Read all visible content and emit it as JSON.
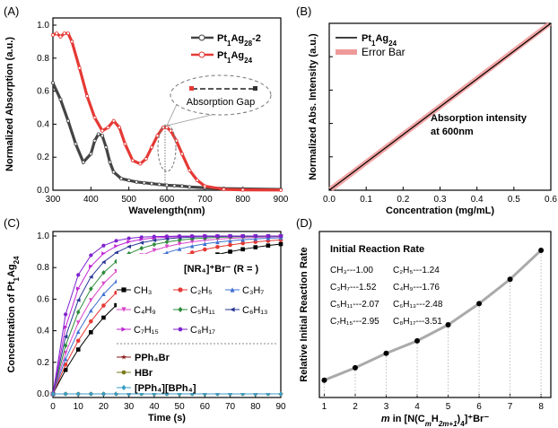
{
  "panels": {
    "A": {
      "label": "(A)"
    },
    "B": {
      "label": "(B)"
    },
    "C": {
      "label": "(C)"
    },
    "D": {
      "label": "(D)"
    }
  },
  "chart_data": [
    {
      "id": "A",
      "type": "line",
      "xlabel": "Wavelength(nm)",
      "ylabel": "Normalized Absorption (a.u.)",
      "xlim": [
        300,
        900
      ],
      "ylim": [
        0,
        1.0
      ],
      "xticks": [
        "300",
        "400",
        "500",
        "600",
        "700",
        "800",
        "900"
      ],
      "yticks": [
        "0.0",
        "0.2",
        "0.4",
        "0.6",
        "0.8",
        "1.0"
      ],
      "legend_position": "top-right",
      "annotation": "Absorption Gap",
      "series": [
        {
          "name_main": "Pt",
          "name_sub": "1",
          "name_main2": "Ag",
          "name_sub2": "28",
          "name_tail": "-2",
          "color": "#444444",
          "x": [
            300,
            320,
            340,
            360,
            380,
            400,
            410,
            420,
            430,
            440,
            450,
            460,
            480,
            500,
            520,
            540,
            560,
            580,
            600,
            620,
            640,
            660,
            700,
            750,
            800,
            900
          ],
          "y": [
            0.65,
            0.55,
            0.42,
            0.28,
            0.17,
            0.22,
            0.3,
            0.34,
            0.33,
            0.26,
            0.17,
            0.11,
            0.07,
            0.06,
            0.05,
            0.045,
            0.04,
            0.035,
            0.03,
            0.028,
            0.025,
            0.02,
            0.015,
            0.01,
            0.008,
            0.005
          ]
        },
        {
          "name_main": "Pt",
          "name_sub": "1",
          "name_main2": "Ag",
          "name_sub2": "24",
          "name_tail": "",
          "color": "#e53935",
          "x": [
            300,
            310,
            320,
            330,
            340,
            350,
            370,
            390,
            410,
            430,
            445,
            460,
            475,
            490,
            510,
            530,
            545,
            560,
            575,
            590,
            600,
            610,
            625,
            640,
            660,
            680,
            700,
            750,
            800,
            900
          ],
          "y": [
            0.94,
            0.95,
            0.93,
            0.95,
            0.95,
            0.9,
            0.74,
            0.57,
            0.44,
            0.36,
            0.38,
            0.42,
            0.38,
            0.28,
            0.18,
            0.16,
            0.19,
            0.26,
            0.33,
            0.38,
            0.38,
            0.36,
            0.3,
            0.22,
            0.12,
            0.06,
            0.025,
            0.005,
            0.002,
            0.001
          ]
        }
      ]
    },
    {
      "id": "B",
      "type": "line",
      "xlabel": "Concentration (mg/mL)",
      "ylabel": "Normalized Abs. Intensity (a.u.)",
      "xlim": [
        0,
        0.6
      ],
      "ylim": [
        0,
        1
      ],
      "xticks": [
        "0.0",
        "0.1",
        "0.2",
        "0.3",
        "0.4",
        "0.5",
        "0.6"
      ],
      "annotation_line1": "Absorption intensity",
      "annotation_line2": "at 600nm",
      "legend_position": "top-left",
      "series": [
        {
          "name_main": "Pt",
          "name_sub": "1",
          "name_main2": "Ag",
          "name_sub2": "24",
          "color": "#000000",
          "x": [
            0,
            0.6
          ],
          "y": [
            0,
            1
          ]
        },
        {
          "name": "Error Bar",
          "color": "#e53935",
          "x": [
            0,
            0.6
          ],
          "y": [
            0,
            1
          ]
        }
      ]
    },
    {
      "id": "C",
      "type": "line",
      "xlabel": "Time (s)",
      "ylabel_main": "Concentration of Pt",
      "ylabel_sub": "1",
      "ylabel_main2": "Ag",
      "ylabel_sub2": "24",
      "xlim": [
        0,
        90
      ],
      "ylim": [
        0,
        1.0
      ],
      "xticks": [
        "0",
        "10",
        "20",
        "30",
        "40",
        "50",
        "60",
        "70",
        "80",
        "90"
      ],
      "yticks": [
        "0.0",
        "0.2",
        "0.4",
        "0.6",
        "0.8",
        "1.0"
      ],
      "legend_header": "[NR₄]⁺Br⁻ (R = )",
      "x": [
        0,
        5,
        10,
        15,
        20,
        25,
        30,
        35,
        40,
        45,
        50,
        55,
        60,
        65,
        70,
        75,
        80,
        85,
        90
      ],
      "series": [
        {
          "name": "CH₃",
          "color": "#000000",
          "marker": "square",
          "k": 0.033
        },
        {
          "name": "C₂H₅",
          "color": "#e53935",
          "marker": "circle",
          "k": 0.041
        },
        {
          "name": "C₃H₇",
          "color": "#3f6fd1",
          "marker": "triangle",
          "k": 0.05
        },
        {
          "name": "C₄H₉",
          "color": "#d946c9",
          "marker": "triangle-down",
          "k": 0.06
        },
        {
          "name": "C₅H₁₁",
          "color": "#2e8b3a",
          "marker": "diamond",
          "k": 0.073
        },
        {
          "name": "C₆H₁₃",
          "color": "#283593",
          "marker": "triangle-left",
          "k": 0.09
        },
        {
          "name": "C₇H₁₅",
          "color": "#c026d3",
          "marker": "triangle-right",
          "k": 0.11
        },
        {
          "name": "C₈H₁₇",
          "color": "#7e22ce",
          "marker": "hexagon",
          "k": 0.14
        },
        {
          "name": "PPh₄Br",
          "color": "#8b1a1a",
          "marker": "star",
          "k": 0
        },
        {
          "name": "HBr",
          "color": "#7a7a1a",
          "marker": "hexagon",
          "k": 0
        },
        {
          "name": "[PPh₄][BPh₄]",
          "color": "#3a9ec9",
          "marker": "diamond",
          "k": 0
        }
      ]
    },
    {
      "id": "D",
      "type": "line",
      "xlabel_prefix": "m",
      "xlabel_rest": " in [N(C",
      "xlabel_sub1": "m",
      "xlabel_mid": "H",
      "xlabel_sub2": "2m+1",
      "xlabel_mid2": ")",
      "xlabel_sub3": "4",
      "xlabel_tail": "]⁺Br⁻",
      "ylabel": "Relative Initial Reaction Rate",
      "xlim": [
        1,
        8
      ],
      "xticks": [
        "1",
        "2",
        "3",
        "4",
        "5",
        "6",
        "7",
        "8"
      ],
      "ylim": [
        0.7,
        3.7
      ],
      "annotation_title": "Initial Reaction Rate",
      "table": [
        [
          "CH₃---1.00",
          "C₂H₅---1.24"
        ],
        [
          "C₃H₇---1.52",
          "C₄H₉---1.76"
        ],
        [
          "C₅H₁₁---2.07",
          "C₆H₁₃---2.48"
        ],
        [
          "C₇H₁₅---2.95",
          "C₈H₁₇---3.51"
        ]
      ],
      "series": [
        {
          "color": "#000000",
          "x": [
            1,
            2,
            3,
            4,
            5,
            6,
            7,
            8
          ],
          "y": [
            1.0,
            1.24,
            1.52,
            1.76,
            2.07,
            2.48,
            2.95,
            3.51
          ]
        }
      ]
    }
  ]
}
